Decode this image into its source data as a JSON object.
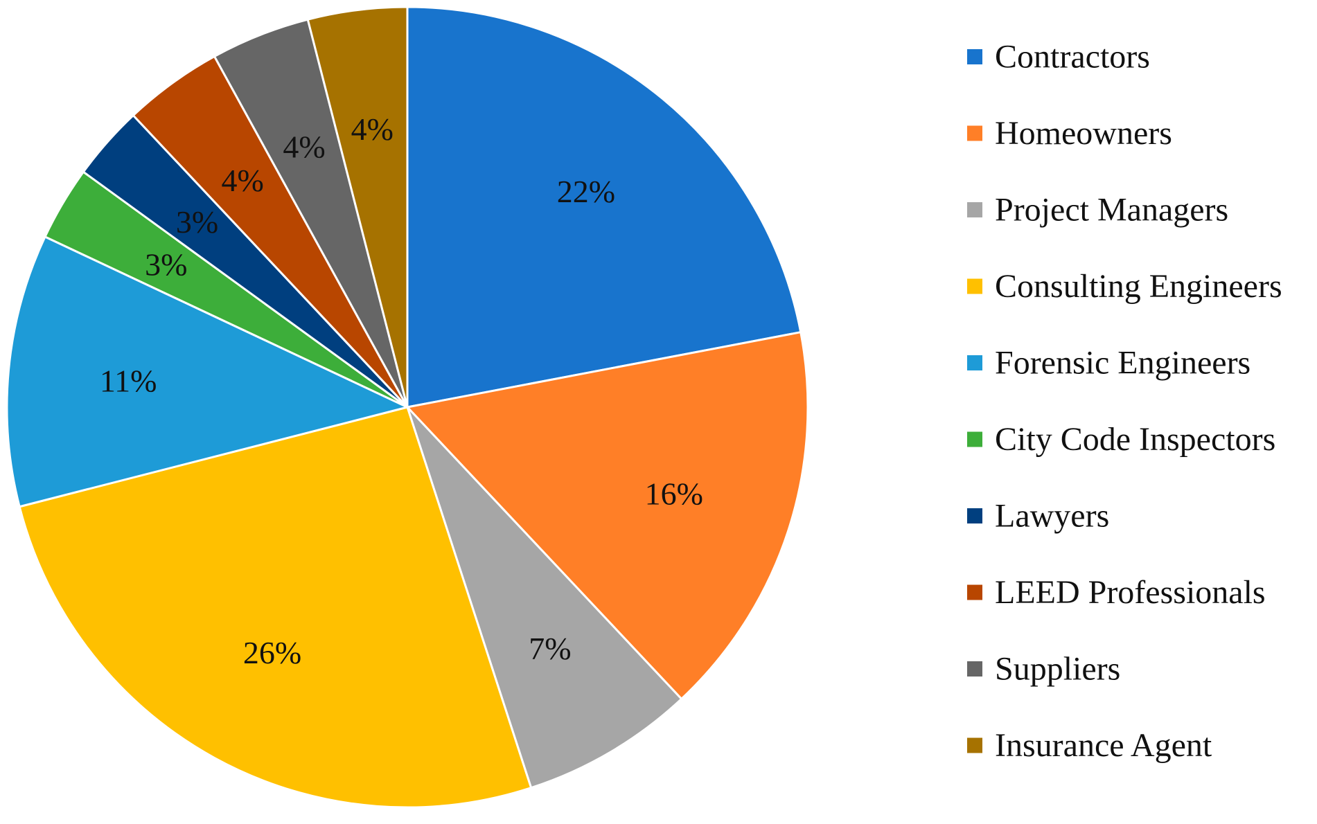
{
  "chart_data": {
    "type": "pie",
    "title": "",
    "legend_position": "right",
    "start_angle_deg": 0,
    "direction": "clockwise",
    "label_suffix": "%",
    "series": [
      {
        "name": "Contractors",
        "value": 22,
        "label": "22%",
        "color": "#1874CD"
      },
      {
        "name": "Homeowners",
        "value": 16,
        "label": "16%",
        "color": "#FF7F27"
      },
      {
        "name": "Project Managers",
        "value": 7,
        "label": "7%",
        "color": "#A6A6A6"
      },
      {
        "name": "Consulting Engineers",
        "value": 26,
        "label": "26%",
        "color": "#FFC000"
      },
      {
        "name": "Forensic Engineers",
        "value": 11,
        "label": "11%",
        "color": "#1E9BD7"
      },
      {
        "name": "City Code Inspectors",
        "value": 3,
        "label": "3%",
        "color": "#3DAE3A"
      },
      {
        "name": "Lawyers",
        "value": 3,
        "label": "3%",
        "color": "#003F7F"
      },
      {
        "name": "LEED Professionals",
        "value": 4,
        "label": "4%",
        "color": "#B84600"
      },
      {
        "name": "Suppliers",
        "value": 4,
        "label": "4%",
        "color": "#666666"
      },
      {
        "name": "Insurance Agent",
        "value": 4,
        "label": "4%",
        "color": "#A67200"
      }
    ]
  }
}
